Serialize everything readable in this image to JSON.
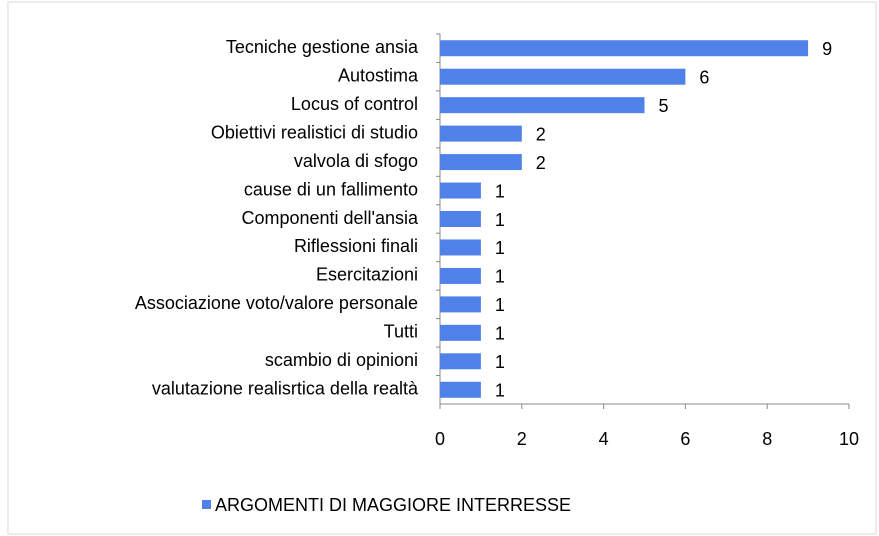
{
  "chart_data": {
    "type": "bar",
    "orientation": "horizontal",
    "categories": [
      "Tecniche gestione ansia",
      "Autostima",
      "Locus of control",
      "Obiettivi realistici di studio",
      "valvola di sfogo",
      "cause di un fallimento",
      "Componenti dell'ansia",
      "Riflessioni finali",
      "Esercitazioni",
      "Associazione voto/valore personale",
      "Tutti",
      "scambio di opinioni",
      "valutazione realisrtica della realtà"
    ],
    "series": [
      {
        "name": "ARGOMENTI DI MAGGIORE INTERRESSE",
        "color": "#4f81e8",
        "values": [
          9,
          6,
          5,
          2,
          2,
          1,
          1,
          1,
          1,
          1,
          1,
          1,
          1
        ]
      }
    ],
    "xlim": [
      0,
      10
    ],
    "xticks": [
      0,
      2,
      4,
      6,
      8,
      10
    ],
    "grid": false,
    "legend": "bottom"
  }
}
